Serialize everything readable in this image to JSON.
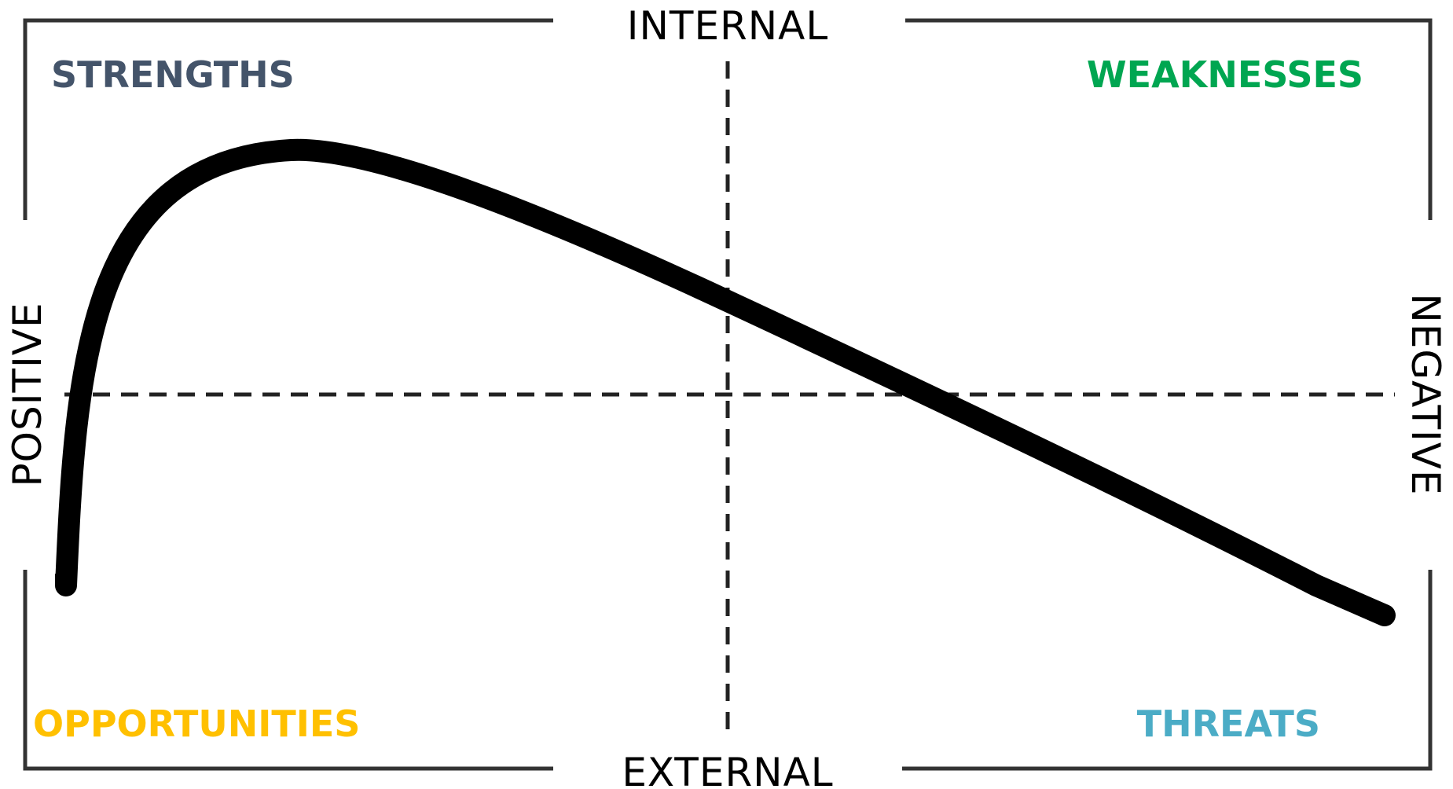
{
  "labels": {
    "top": "INTERNAL",
    "bottom": "EXTERNAL",
    "left": "POSITIVE",
    "right": "NEGATIVE"
  },
  "quadrants": {
    "top_left": {
      "text": "STRENGTHS",
      "color": "#44546A"
    },
    "top_right": {
      "text": "WEAKNESSES",
      "color": "#00A651"
    },
    "bottom_left": {
      "text": "OPPORTUNITIES",
      "color": "#FFC000"
    },
    "bottom_right": {
      "text": "THREATS",
      "color": "#4BACC6"
    }
  },
  "colors": {
    "frame": "#333333",
    "divider": "#222222",
    "curve": "#000000"
  }
}
